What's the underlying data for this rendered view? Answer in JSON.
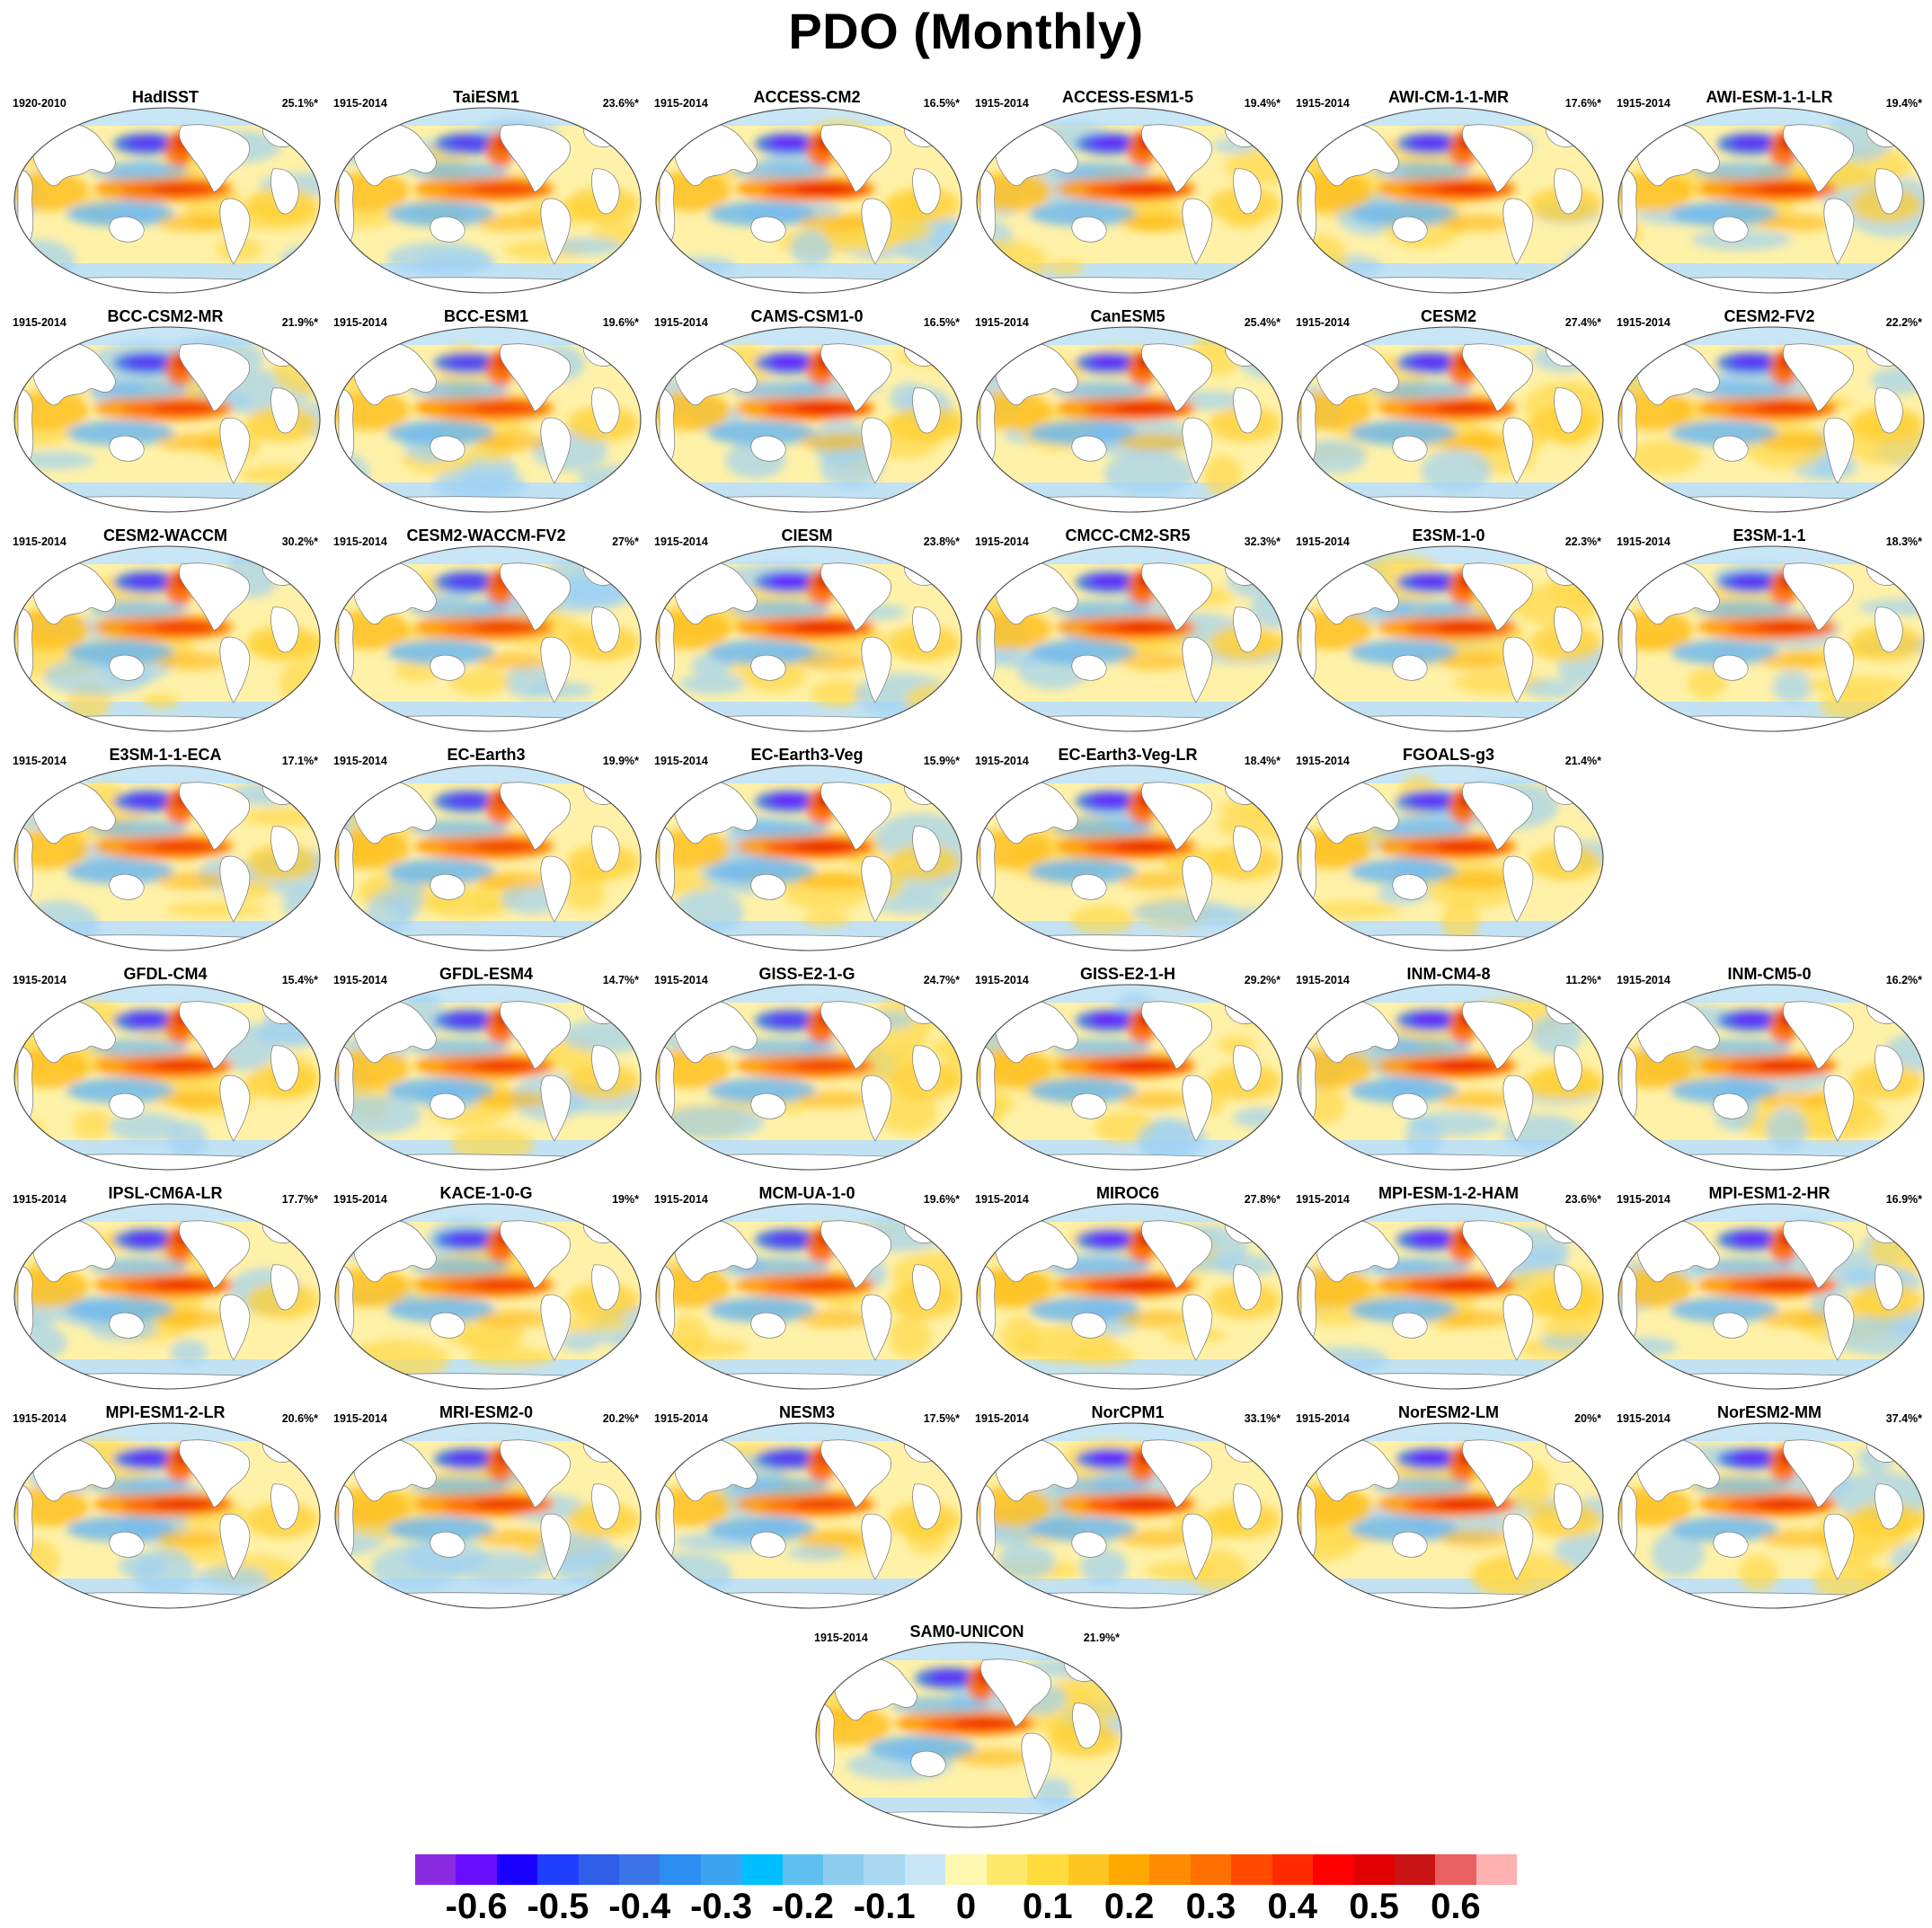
{
  "title": "PDO (Monthly)",
  "panels": [
    {
      "name": "HadISST",
      "years": "1920-2010",
      "pct": "25.1%*"
    },
    {
      "name": "TaiESM1",
      "years": "1915-2014",
      "pct": "23.6%*"
    },
    {
      "name": "ACCESS-CM2",
      "years": "1915-2014",
      "pct": "16.5%*"
    },
    {
      "name": "ACCESS-ESM1-5",
      "years": "1915-2014",
      "pct": "19.4%*"
    },
    {
      "name": "AWI-CM-1-1-MR",
      "years": "1915-2014",
      "pct": "17.6%*"
    },
    {
      "name": "AWI-ESM-1-1-LR",
      "years": "1915-2014",
      "pct": "19.4%*"
    },
    {
      "name": "BCC-CSM2-MR",
      "years": "1915-2014",
      "pct": "21.9%*"
    },
    {
      "name": "BCC-ESM1",
      "years": "1915-2014",
      "pct": "19.6%*"
    },
    {
      "name": "CAMS-CSM1-0",
      "years": "1915-2014",
      "pct": "16.5%*"
    },
    {
      "name": "CanESM5",
      "years": "1915-2014",
      "pct": "25.4%*"
    },
    {
      "name": "CESM2",
      "years": "1915-2014",
      "pct": "27.4%*"
    },
    {
      "name": "CESM2-FV2",
      "years": "1915-2014",
      "pct": "22.2%*"
    },
    {
      "name": "CESM2-WACCM",
      "years": "1915-2014",
      "pct": "30.2%*"
    },
    {
      "name": "CESM2-WACCM-FV2",
      "years": "1915-2014",
      "pct": "27%*"
    },
    {
      "name": "CIESM",
      "years": "1915-2014",
      "pct": "23.8%*"
    },
    {
      "name": "CMCC-CM2-SR5",
      "years": "1915-2014",
      "pct": "32.3%*"
    },
    {
      "name": "E3SM-1-0",
      "years": "1915-2014",
      "pct": "22.3%*"
    },
    {
      "name": "E3SM-1-1",
      "years": "1915-2014",
      "pct": "18.3%*"
    },
    {
      "name": "E3SM-1-1-ECA",
      "years": "1915-2014",
      "pct": "17.1%*"
    },
    {
      "name": "EC-Earth3",
      "years": "1915-2014",
      "pct": "19.9%*"
    },
    {
      "name": "EC-Earth3-Veg",
      "years": "1915-2014",
      "pct": "15.9%*"
    },
    {
      "name": "EC-Earth3-Veg-LR",
      "years": "1915-2014",
      "pct": "18.4%*"
    },
    {
      "name": "FGOALS-g3",
      "years": "1915-2014",
      "pct": "21.4%*"
    },
    {
      "name": "GFDL-CM4",
      "years": "1915-2014",
      "pct": "15.4%*"
    },
    {
      "name": "GFDL-ESM4",
      "years": "1915-2014",
      "pct": "14.7%*"
    },
    {
      "name": "GISS-E2-1-G",
      "years": "1915-2014",
      "pct": "24.7%*"
    },
    {
      "name": "GISS-E2-1-H",
      "years": "1915-2014",
      "pct": "29.2%*"
    },
    {
      "name": "INM-CM4-8",
      "years": "1915-2014",
      "pct": "11.2%*"
    },
    {
      "name": "INM-CM5-0",
      "years": "1915-2014",
      "pct": "16.2%*"
    },
    {
      "name": "IPSL-CM6A-LR",
      "years": "1915-2014",
      "pct": "17.7%*"
    },
    {
      "name": "KACE-1-0-G",
      "years": "1915-2014",
      "pct": "19%*"
    },
    {
      "name": "MCM-UA-1-0",
      "years": "1915-2014",
      "pct": "19.6%*"
    },
    {
      "name": "MIROC6",
      "years": "1915-2014",
      "pct": "27.8%*"
    },
    {
      "name": "MPI-ESM-1-2-HAM",
      "years": "1915-2014",
      "pct": "23.6%*"
    },
    {
      "name": "MPI-ESM1-2-HR",
      "years": "1915-2014",
      "pct": "16.9%*"
    },
    {
      "name": "MPI-ESM1-2-LR",
      "years": "1915-2014",
      "pct": "20.6%*"
    },
    {
      "name": "MRI-ESM2-0",
      "years": "1915-2014",
      "pct": "20.2%*"
    },
    {
      "name": "NESM3",
      "years": "1915-2014",
      "pct": "17.5%*"
    },
    {
      "name": "NorCPM1",
      "years": "1915-2014",
      "pct": "33.1%*"
    },
    {
      "name": "NorESM2-LM",
      "years": "1915-2014",
      "pct": "20%*"
    },
    {
      "name": "NorESM2-MM",
      "years": "1915-2014",
      "pct": "37.4%*"
    },
    {
      "name": "SAM0-UNICON",
      "years": "1915-2014",
      "pct": "21.9%*"
    }
  ],
  "colorbar": {
    "colors": [
      "#8a2be2",
      "#6a0dff",
      "#1a00ff",
      "#1f3fff",
      "#2f5fe8",
      "#3a74e6",
      "#2c8ef0",
      "#3aa4f0",
      "#00bfff",
      "#5fc0ef",
      "#8ccdf0",
      "#a9d8f2",
      "#c8e6f5",
      "#fff8b0",
      "#ffe96a",
      "#ffdc3c",
      "#ffc520",
      "#ffa800",
      "#ff8c00",
      "#ff7000",
      "#ff4a00",
      "#ff2a00",
      "#ff0000",
      "#e00000",
      "#c81414",
      "#e86060",
      "#ffb0b0"
    ],
    "tick_labels": [
      "-0.6",
      "-0.5",
      "-0.4",
      "-0.3",
      "-0.2",
      "-0.1",
      "0",
      "0.1",
      "0.2",
      "0.3",
      "0.4",
      "0.5",
      "0.6"
    ]
  }
}
